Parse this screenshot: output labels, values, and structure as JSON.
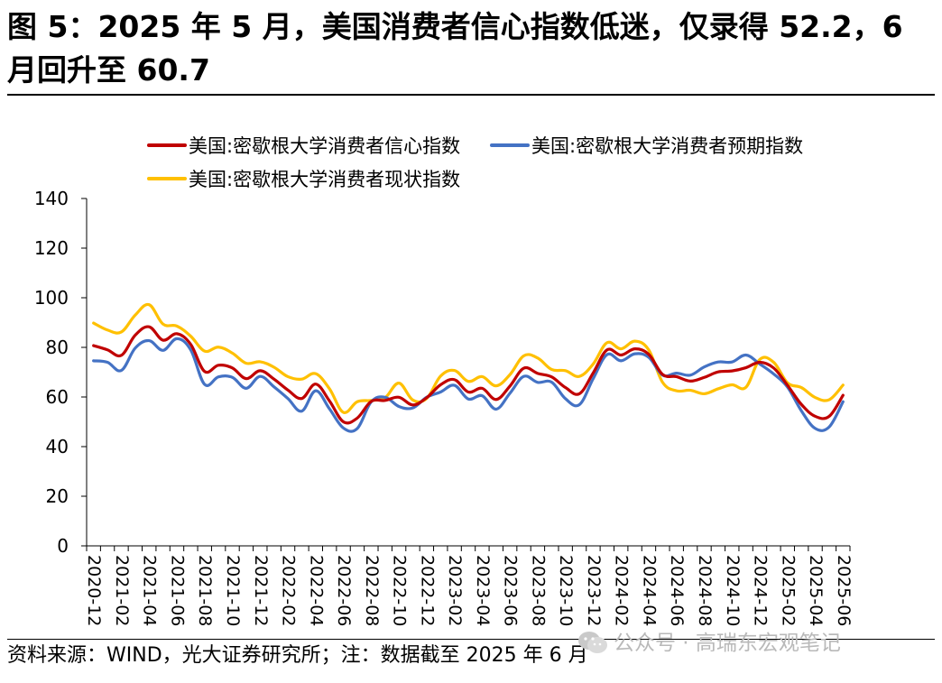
{
  "header": {
    "title": "图 5：2025 年 5 月，美国消费者信心指数低迷，仅录得 52.2，6 月回升至 60.7"
  },
  "footer": {
    "source": "资料来源：WIND，光大证券研究所；注：数据截至 2025 年 6 月",
    "watermark": "公众号 · 高瑞东宏观笔记"
  },
  "chart_data": {
    "type": "line",
    "title": "",
    "xlabel": "",
    "ylabel": "",
    "ylim": [
      0,
      140
    ],
    "yticks": [
      0,
      20,
      40,
      60,
      80,
      100,
      120,
      140
    ],
    "grid": false,
    "legend_position": "top",
    "x_tick_labels": [
      "2020-12",
      "2021-02",
      "2021-04",
      "2021-06",
      "2021-08",
      "2021-10",
      "2021-12",
      "2022-02",
      "2022-04",
      "2022-06",
      "2022-08",
      "2022-10",
      "2022-12",
      "2023-02",
      "2023-04",
      "2023-06",
      "2023-08",
      "2023-10",
      "2023-12",
      "2024-02",
      "2024-04",
      "2024-06",
      "2024-08",
      "2024-10",
      "2024-12",
      "2025-02",
      "2025-04",
      "2025-06"
    ],
    "x": [
      "2020-12",
      "2021-01",
      "2021-02",
      "2021-03",
      "2021-04",
      "2021-05",
      "2021-06",
      "2021-07",
      "2021-08",
      "2021-09",
      "2021-10",
      "2021-11",
      "2021-12",
      "2022-01",
      "2022-02",
      "2022-03",
      "2022-04",
      "2022-05",
      "2022-06",
      "2022-07",
      "2022-08",
      "2022-09",
      "2022-10",
      "2022-11",
      "2022-12",
      "2023-01",
      "2023-02",
      "2023-03",
      "2023-04",
      "2023-05",
      "2023-06",
      "2023-07",
      "2023-08",
      "2023-09",
      "2023-10",
      "2023-11",
      "2023-12",
      "2024-01",
      "2024-02",
      "2024-03",
      "2024-04",
      "2024-05",
      "2024-06",
      "2024-07",
      "2024-08",
      "2024-09",
      "2024-10",
      "2024-11",
      "2024-12",
      "2025-01",
      "2025-02",
      "2025-03",
      "2025-04",
      "2025-05",
      "2025-06"
    ],
    "series": [
      {
        "name": "美国:密歇根大学消费者信心指数",
        "color": "#c00000",
        "values": [
          80.7,
          79.0,
          76.8,
          84.9,
          88.3,
          82.9,
          85.5,
          81.2,
          70.3,
          72.8,
          71.7,
          67.4,
          70.6,
          67.2,
          62.8,
          59.4,
          65.2,
          58.4,
          50.0,
          51.5,
          58.2,
          58.6,
          59.9,
          56.8,
          59.7,
          64.9,
          67.0,
          62.0,
          63.5,
          59.0,
          64.4,
          71.6,
          69.5,
          68.1,
          63.8,
          61.3,
          69.7,
          79.0,
          76.9,
          79.4,
          77.2,
          69.1,
          68.2,
          66.4,
          67.9,
          70.1,
          70.5,
          71.8,
          74.0,
          71.7,
          64.7,
          57.0,
          52.2,
          52.2,
          60.7
        ]
      },
      {
        "name": "美国:密歇根大学消费者预期指数",
        "color": "#4472c4",
        "values": [
          74.6,
          74.0,
          70.7,
          79.7,
          82.7,
          78.8,
          83.5,
          79.0,
          65.1,
          68.1,
          67.9,
          63.5,
          68.3,
          64.1,
          59.4,
          54.3,
          62.5,
          55.2,
          47.5,
          47.3,
          58.0,
          59.9,
          56.2,
          55.6,
          59.9,
          62.0,
          64.7,
          59.2,
          60.5,
          55.1,
          61.5,
          68.3,
          65.9,
          66.0,
          59.3,
          56.9,
          67.4,
          77.1,
          74.6,
          77.4,
          76.0,
          68.8,
          69.6,
          68.8,
          72.1,
          74.1,
          74.1,
          76.9,
          73.3,
          69.3,
          64.0,
          54.4,
          47.3,
          47.9,
          58.1
        ]
      },
      {
        "name": "美国:密歇根大学消费者现状指数",
        "color": "#ffc000",
        "values": [
          89.8,
          87.0,
          86.2,
          93.0,
          97.2,
          89.4,
          88.6,
          84.5,
          78.5,
          80.1,
          77.7,
          73.6,
          74.2,
          72.0,
          68.2,
          67.2,
          69.4,
          63.3,
          53.8,
          58.1,
          58.6,
          59.7,
          65.6,
          58.8,
          59.4,
          68.4,
          70.7,
          66.3,
          68.2,
          64.5,
          69.0,
          76.6,
          75.7,
          71.1,
          70.6,
          68.3,
          73.3,
          81.9,
          79.4,
          82.5,
          79.0,
          65.9,
          62.5,
          62.7,
          61.3,
          63.3,
          64.9,
          63.9,
          75.1,
          74.0,
          65.7,
          63.8,
          59.8,
          58.9,
          64.8
        ]
      }
    ]
  }
}
